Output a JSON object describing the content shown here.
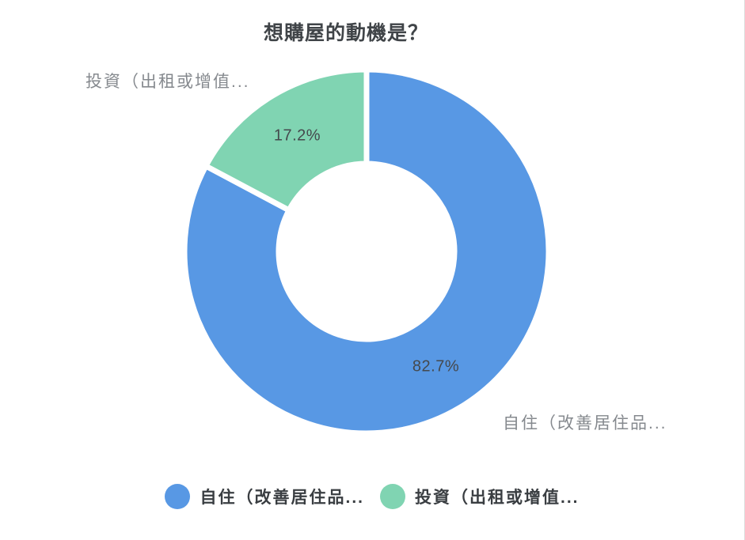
{
  "chart_data": {
    "type": "pie",
    "variant": "donut",
    "title": "想購屋的動機是？",
    "start_angle": "top",
    "direction": "clockwise",
    "legend_position": "bottom",
    "slices": [
      {
        "label": "自住（改善居住品...",
        "value": 82.7,
        "percent_label": "82.7%",
        "color": "#5898e4"
      },
      {
        "label": "投資（出租或增值...",
        "value": 17.2,
        "percent_label": "17.2%",
        "color": "#80d4b2"
      }
    ]
  },
  "legend": {
    "items": [
      {
        "label": "自住（改善居住品...",
        "color": "#5898e4"
      },
      {
        "label": "投資（出租或增值...",
        "color": "#80d4b2"
      }
    ]
  },
  "colors": {
    "background": "#ffffff",
    "title_text": "#404448",
    "percent_text": "#45494d",
    "outer_label_text": "#85898e",
    "legend_text": "#3a3e42",
    "slice_gap": "#ffffff"
  }
}
